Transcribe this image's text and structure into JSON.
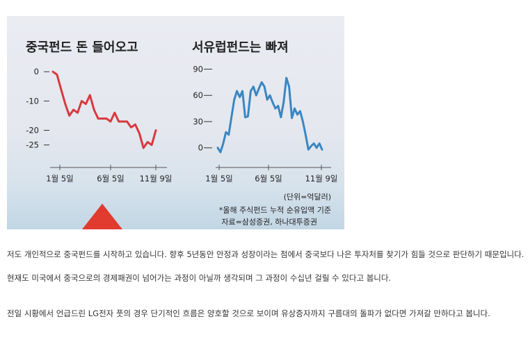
{
  "chart_data": [
    {
      "type": "line",
      "title": "중국펀드 돈 들어오고",
      "color": "#d8383d",
      "x_ticks": [
        "1월 5일",
        "6월 5일",
        "11월 9일"
      ],
      "y_ticks": [
        "0",
        "-10",
        "-20",
        "-25"
      ],
      "ylim": [
        -27,
        1
      ],
      "series": [
        {
          "values": [
            0,
            -1,
            -6,
            -11,
            -15,
            -13,
            -14,
            -10,
            -11,
            -8,
            -13,
            -16,
            -16,
            -16,
            -17,
            -14,
            -17,
            -17,
            -17,
            -19,
            -18,
            -21,
            -26,
            -24,
            -25,
            -20
          ]
        }
      ]
    },
    {
      "type": "line",
      "title": "서유럽펀드는 빠져",
      "color": "#3a86c2",
      "x_ticks": [
        "1월 5일",
        "6월 5일",
        "11월 9일"
      ],
      "y_ticks": [
        "90",
        "60",
        "30",
        "0"
      ],
      "ylim": [
        -5,
        92
      ],
      "series": [
        {
          "values": [
            0,
            -5,
            5,
            18,
            15,
            35,
            55,
            65,
            58,
            65,
            35,
            36,
            65,
            70,
            60,
            68,
            75,
            70,
            55,
            60,
            52,
            45,
            48,
            35,
            52,
            80,
            70,
            34,
            45,
            38,
            42,
            30,
            15,
            -2,
            2,
            5,
            0,
            5,
            -2
          ]
        }
      ]
    }
  ],
  "unit_note": "(단위=억달러)",
  "footnote": "*올해 주식펀드 누적 순유입액 기준",
  "source": "자료=삼성증권, 하나대투증권",
  "paragraphs": [
    "저도 개인적으로 중국펀드를 시작하고 있습니다. 향후 5년동안 안정과 성장이라는 점에서 중국보다 나은 투자처를 찾기가 힘들 것으로 판단하기 때문입니다.",
    "현재도 미국에서 중국으로의 경제패권이 넘어가는 과정이 아닐까 생각되며 그 과정이 수십년 걸릴 수 있다고 봅니다.",
    "전일 시황에서 언급드린 LG전자 풋의 경우 단기적인 흐름은 양호할 것으로 보이며 유상증자까지 구름대의 돌파가 없다면 가져갈 만하다고 봅니다."
  ]
}
